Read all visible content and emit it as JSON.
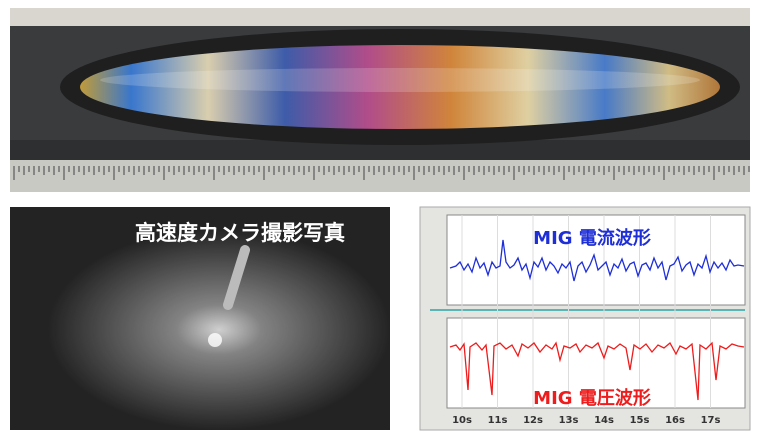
{
  "photo_caption": "高速度カメラ撮影写真",
  "waveform": {
    "current_label": "MIG 電流波形",
    "voltage_label": "MIG 電圧波形",
    "x_ticks": [
      "10s",
      "11s",
      "12s",
      "13s",
      "14s",
      "15s",
      "16s",
      "17s"
    ]
  }
}
